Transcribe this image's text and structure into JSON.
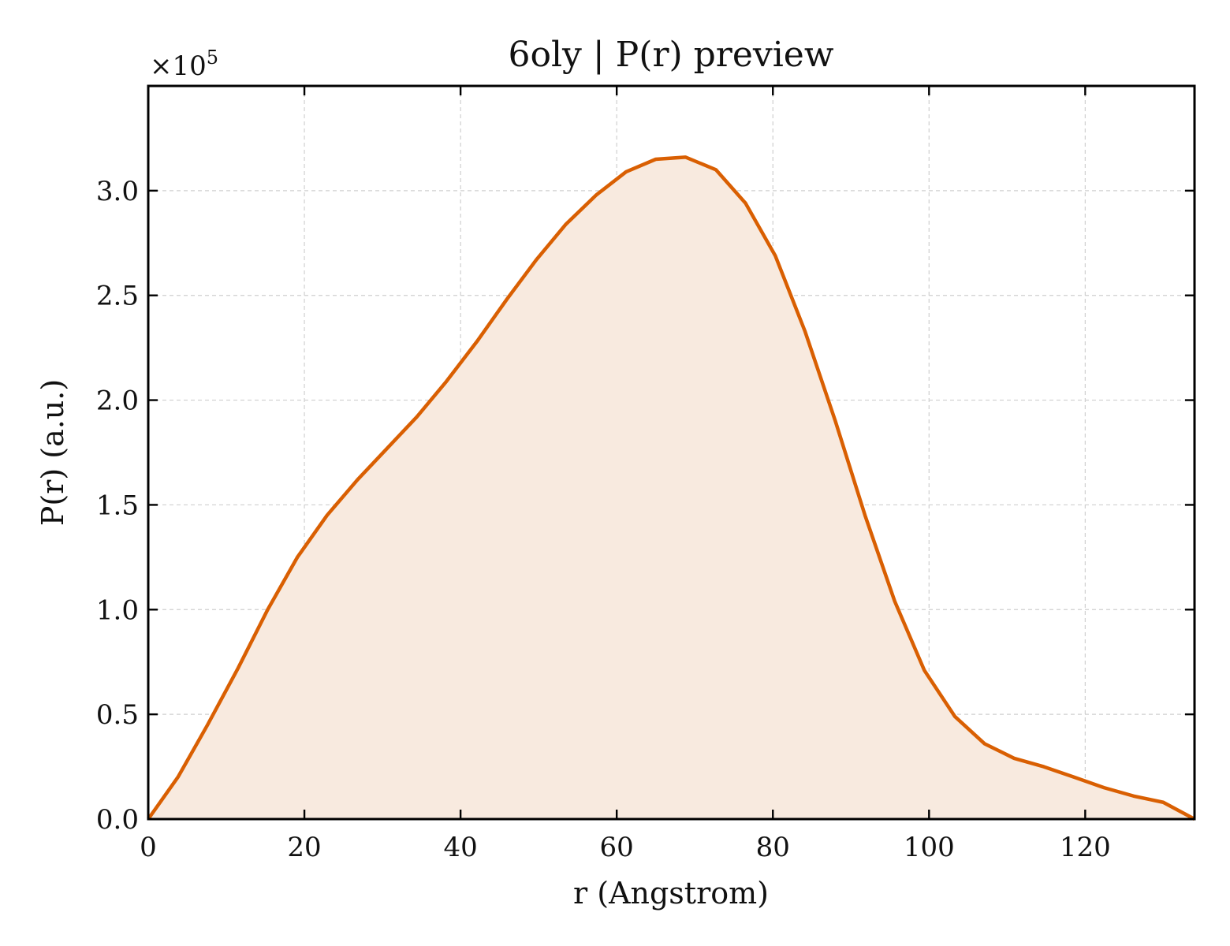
{
  "chart_data": {
    "type": "area",
    "title": "6oly | P(r) preview",
    "xlabel": "r (Angstrom)",
    "ylabel": "P(r) (a.u.)",
    "y_offset_text": "×10",
    "y_offset_exponent": "5",
    "y_multiplier": 100000,
    "xlim": [
      0,
      134
    ],
    "ylim": [
      0,
      3.5
    ],
    "x_ticks": [
      0,
      20,
      40,
      60,
      80,
      100,
      120
    ],
    "x_tick_labels": [
      "0",
      "20",
      "40",
      "60",
      "80",
      "100",
      "120"
    ],
    "y_ticks": [
      0.0,
      0.5,
      1.0,
      1.5,
      2.0,
      2.5,
      3.0
    ],
    "y_tick_labels": [
      "0.0",
      "0.5",
      "1.0",
      "1.5",
      "2.0",
      "2.5",
      "3.0"
    ],
    "grid": true,
    "line_color": "#d95f02",
    "fill_color": "#f8eadf",
    "series": [
      {
        "x": [
          0,
          3.8,
          7.6,
          11.5,
          15.3,
          19.1,
          22.9,
          26.8,
          30.6,
          34.4,
          38.2,
          42.1,
          45.9,
          49.7,
          53.5,
          57.4,
          61.2,
          65.0,
          68.8,
          72.7,
          76.5,
          80.3,
          84.1,
          88.0,
          91.8,
          95.6,
          99.4,
          103.3,
          107.1,
          110.9,
          114.7,
          118.6,
          122.4,
          126.2,
          130.0,
          134.0
        ],
        "y": [
          0.0,
          0.2,
          0.45,
          0.72,
          1.0,
          1.25,
          1.45,
          1.62,
          1.77,
          1.92,
          2.09,
          2.28,
          2.48,
          2.67,
          2.84,
          2.98,
          3.09,
          3.15,
          3.16,
          3.1,
          2.94,
          2.69,
          2.33,
          1.9,
          1.45,
          1.04,
          0.71,
          0.49,
          0.36,
          0.29,
          0.25,
          0.2,
          0.15,
          0.11,
          0.08,
          0.0
        ]
      }
    ]
  }
}
